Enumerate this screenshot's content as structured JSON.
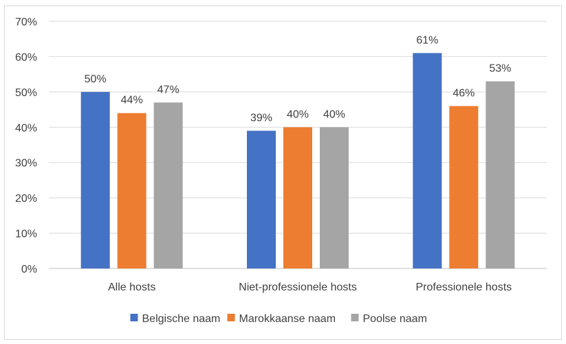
{
  "chart_data": {
    "type": "bar",
    "title": "",
    "xlabel": "",
    "ylabel": "",
    "ylim": [
      0,
      70
    ],
    "grid": true,
    "legend_position": "bottom",
    "categories": [
      "Alle hosts",
      "Niet-professionele hosts",
      "Professionele hosts"
    ],
    "series": [
      {
        "name": "Belgische naam",
        "color": "#4472c4",
        "values": [
          50,
          39,
          61
        ],
        "labels": [
          "50%",
          "39%",
          "61%"
        ]
      },
      {
        "name": "Marokkaanse naam",
        "color": "#ed7d31",
        "values": [
          44,
          40,
          46
        ],
        "labels": [
          "44%",
          "40%",
          "46%"
        ]
      },
      {
        "name": "Poolse naam",
        "color": "#a5a5a5",
        "values": [
          47,
          40,
          53
        ],
        "labels": [
          "47%",
          "40%",
          "53%"
        ]
      }
    ],
    "yticks": [
      {
        "value": 0,
        "label": "0%"
      },
      {
        "value": 10,
        "label": "10%"
      },
      {
        "value": 20,
        "label": "20%"
      },
      {
        "value": 30,
        "label": "30%"
      },
      {
        "value": 40,
        "label": "40%"
      },
      {
        "value": 50,
        "label": "50%"
      },
      {
        "value": 60,
        "label": "60%"
      },
      {
        "value": 70,
        "label": "70%"
      }
    ]
  }
}
